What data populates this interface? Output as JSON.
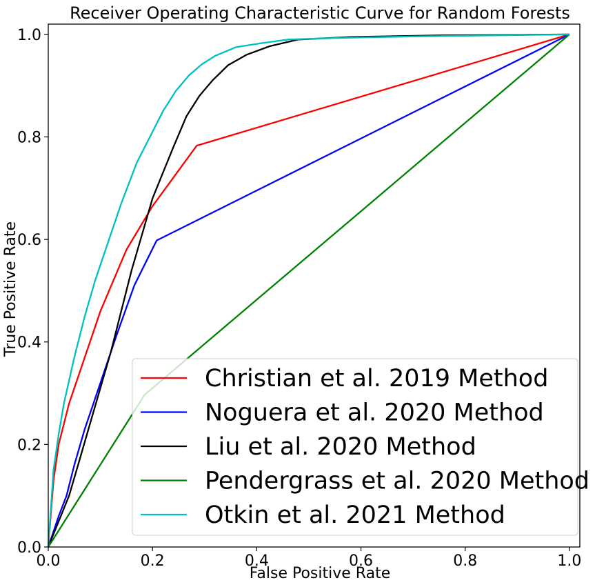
{
  "chart_data": {
    "type": "line",
    "title": "Receiver Operating Characteristic Curve for Random Forests",
    "xlabel": "False Positive Rate",
    "ylabel": "True Positive Rate",
    "xlim": [
      0,
      1.02
    ],
    "ylim": [
      0,
      1.02
    ],
    "xticks": [
      0.0,
      0.2,
      0.4,
      0.6,
      0.8,
      1.0
    ],
    "yticks": [
      0.0,
      0.2,
      0.4,
      0.6,
      0.8,
      1.0
    ],
    "xtick_labels": [
      "0.0",
      "0.2",
      "0.4",
      "0.6",
      "0.8",
      "1.0"
    ],
    "ytick_labels": [
      "0.0",
      "0.2",
      "0.4",
      "0.6",
      "0.8",
      "1.0"
    ],
    "grid": false,
    "legend_position": "lower-right",
    "series": [
      {
        "name": "Christian et al. 2019 Method",
        "color": "#ff0000",
        "x": [
          0,
          0.01,
          0.02,
          0.04,
          0.06,
          0.08,
          0.1,
          0.125,
          0.15,
          0.2,
          0.285,
          1.0
        ],
        "y": [
          0,
          0.13,
          0.2,
          0.28,
          0.34,
          0.4,
          0.46,
          0.52,
          0.58,
          0.665,
          0.783,
          1.0
        ]
      },
      {
        "name": "Noguera et al. 2020 Method",
        "color": "#0000ff",
        "x": [
          0,
          0.01,
          0.02,
          0.035,
          0.05,
          0.07,
          0.1,
          0.13,
          0.165,
          0.208,
          1.0
        ],
        "y": [
          0,
          0.03,
          0.06,
          0.1,
          0.16,
          0.23,
          0.32,
          0.41,
          0.51,
          0.598,
          1.0
        ]
      },
      {
        "name": "Liu et al. 2020 Method",
        "color": "#000000",
        "x": [
          0,
          0.02,
          0.04,
          0.06,
          0.08,
          0.1,
          0.12,
          0.14,
          0.16,
          0.18,
          0.2,
          0.22,
          0.24,
          0.265,
          0.29,
          0.315,
          0.345,
          0.38,
          0.425,
          0.48,
          0.58,
          0.75,
          1.0
        ],
        "y": [
          0,
          0.05,
          0.1,
          0.17,
          0.24,
          0.31,
          0.38,
          0.46,
          0.54,
          0.61,
          0.68,
          0.73,
          0.78,
          0.84,
          0.88,
          0.91,
          0.94,
          0.96,
          0.977,
          0.99,
          0.995,
          0.998,
          1.0
        ]
      },
      {
        "name": "Pendergrass et al. 2020 Method",
        "color": "#008000",
        "x": [
          0,
          0.185,
          1.0
        ],
        "y": [
          0,
          0.297,
          1.0
        ]
      },
      {
        "name": "Otkin et al. 2021 Method",
        "color": "#00bfbf",
        "x": [
          0,
          0.01,
          0.02,
          0.03,
          0.05,
          0.07,
          0.09,
          0.11,
          0.14,
          0.17,
          0.2,
          0.22,
          0.245,
          0.27,
          0.295,
          0.32,
          0.36,
          0.41,
          0.46,
          0.55,
          0.7,
          1.0
        ],
        "y": [
          0,
          0.15,
          0.22,
          0.28,
          0.37,
          0.45,
          0.52,
          0.58,
          0.67,
          0.75,
          0.81,
          0.85,
          0.89,
          0.92,
          0.942,
          0.958,
          0.975,
          0.983,
          0.99,
          0.993,
          0.996,
          1.0
        ]
      }
    ]
  }
}
